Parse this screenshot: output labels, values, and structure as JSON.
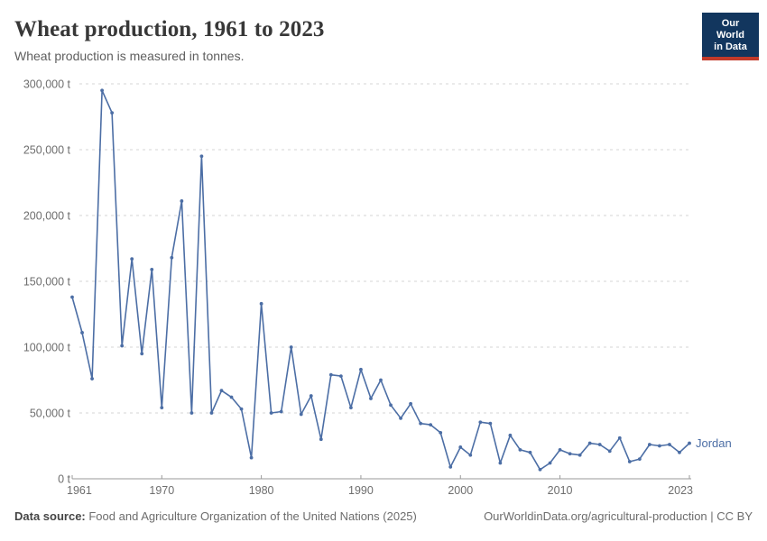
{
  "chart_data": {
    "type": "line",
    "title": "Wheat production, 1961 to 2023",
    "subtitle": "Wheat production is measured in tonnes.",
    "xlabel": "",
    "ylabel": "",
    "xlim": [
      1961,
      2023
    ],
    "ylim": [
      0,
      300000
    ],
    "grid": "horizontal-dashed",
    "legend_position": "end-of-line-label",
    "xticks": [
      1961,
      1970,
      1980,
      1990,
      2000,
      2010,
      2023
    ],
    "yticks": [
      {
        "value": 0,
        "label": "0 t"
      },
      {
        "value": 50000,
        "label": "50,000 t"
      },
      {
        "value": 100000,
        "label": "100,000 t"
      },
      {
        "value": 150000,
        "label": "150,000 t"
      },
      {
        "value": 200000,
        "label": "200,000 t"
      },
      {
        "value": 250000,
        "label": "250,000 t"
      },
      {
        "value": 300000,
        "label": "300,000 t"
      }
    ],
    "x": [
      1961,
      1962,
      1963,
      1964,
      1965,
      1966,
      1967,
      1968,
      1969,
      1970,
      1971,
      1972,
      1973,
      1974,
      1975,
      1976,
      1977,
      1978,
      1979,
      1980,
      1981,
      1982,
      1983,
      1984,
      1985,
      1986,
      1987,
      1988,
      1989,
      1990,
      1991,
      1992,
      1993,
      1994,
      1995,
      1996,
      1997,
      1998,
      1999,
      2000,
      2001,
      2002,
      2003,
      2004,
      2005,
      2006,
      2007,
      2008,
      2009,
      2010,
      2011,
      2012,
      2013,
      2014,
      2015,
      2016,
      2017,
      2018,
      2019,
      2020,
      2021,
      2022,
      2023
    ],
    "series": [
      {
        "name": "Jordan",
        "color": "#4C6EA5",
        "values": [
          138000,
          111000,
          76000,
          295000,
          278000,
          101000,
          167000,
          95000,
          159000,
          54000,
          168000,
          211000,
          50000,
          245000,
          50000,
          67000,
          62000,
          53000,
          16000,
          133000,
          50000,
          51000,
          100000,
          49000,
          63000,
          30000,
          79000,
          78000,
          54000,
          83000,
          61000,
          75000,
          56000,
          46000,
          57000,
          42000,
          41000,
          35000,
          9000,
          24000,
          18000,
          43000,
          42000,
          12000,
          33000,
          22000,
          20000,
          7000,
          12000,
          22000,
          19000,
          18000,
          27000,
          26000,
          21000,
          31000,
          13000,
          15000,
          26000,
          25000,
          26000,
          20000,
          27000
        ]
      }
    ]
  },
  "logo": {
    "line1": "Our World",
    "line2": "in Data"
  },
  "footer": {
    "datasource_label": "Data source:",
    "datasource_text": " Food and Agriculture Organization of the United Nations (2025)",
    "credit": "OurWorldinData.org/agricultural-production | CC BY"
  },
  "colors": {
    "line": "#4C6EA5",
    "title": "#383838",
    "axis_labels": "#6e6e6e",
    "gridline": "#d4d4d4",
    "logo_bg": "#12365e",
    "logo_accent": "#c23a2a"
  }
}
